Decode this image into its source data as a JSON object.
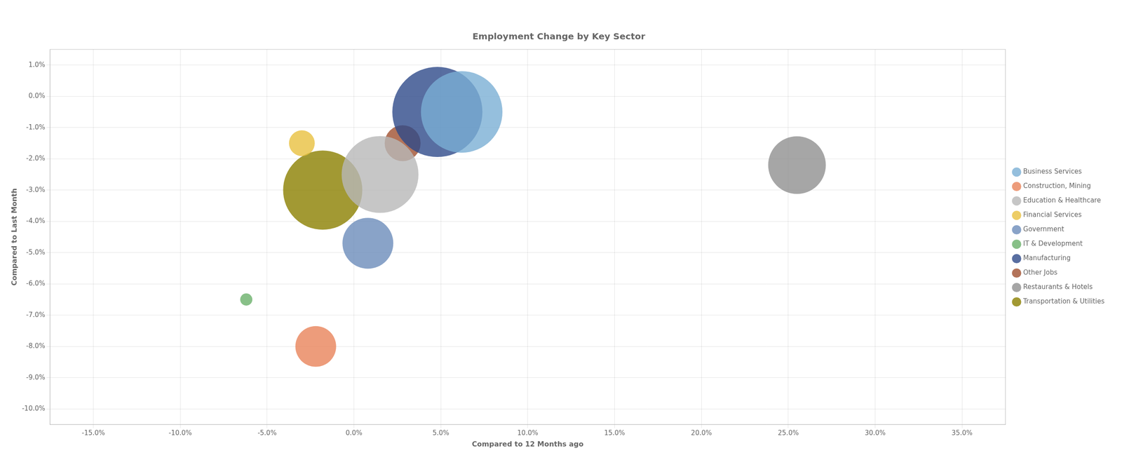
{
  "chart_data": {
    "type": "bubble",
    "title": "Employment Change by Key Sector",
    "x_label": "Compared to 12 Months ago",
    "y_label": "Compared to Last Month",
    "xlim": [
      -0.175,
      0.375
    ],
    "ylim": [
      -0.105,
      0.015
    ],
    "xticks": [
      {
        "value": -0.15,
        "label": "-15.0%"
      },
      {
        "value": -0.1,
        "label": "-10.0%"
      },
      {
        "value": -0.05,
        "label": "-5.0%"
      },
      {
        "value": 0.0,
        "label": "0.0%"
      },
      {
        "value": 0.05,
        "label": "5.0%"
      },
      {
        "value": 0.1,
        "label": "10.0%"
      },
      {
        "value": 0.15,
        "label": "15.0%"
      },
      {
        "value": 0.2,
        "label": "20.0%"
      },
      {
        "value": 0.25,
        "label": "25.0%"
      },
      {
        "value": 0.3,
        "label": "30.0%"
      },
      {
        "value": 0.35,
        "label": "35.0%"
      }
    ],
    "yticks": [
      {
        "value": -0.1,
        "label": "-10.0%"
      },
      {
        "value": -0.09,
        "label": "-9.0%"
      },
      {
        "value": -0.08,
        "label": "-8.0%"
      },
      {
        "value": -0.07,
        "label": "-7.0%"
      },
      {
        "value": -0.06,
        "label": "-6.0%"
      },
      {
        "value": -0.05,
        "label": "-5.0%"
      },
      {
        "value": -0.04,
        "label": "-4.0%"
      },
      {
        "value": -0.03,
        "label": "-3.0%"
      },
      {
        "value": -0.02,
        "label": "-2.0%"
      },
      {
        "value": -0.01,
        "label": "-1.0%"
      },
      {
        "value": 0.0,
        "label": "0.0%"
      },
      {
        "value": 0.01,
        "label": "1.0%"
      }
    ],
    "grid": true,
    "legend": "right",
    "series": [
      {
        "name": "Business Services",
        "color": "#7bafd4",
        "x": [
          0.062
        ],
        "values": [
          -0.005
        ],
        "size": [
          18000
        ]
      },
      {
        "name": "Construction, Mining",
        "color": "#e8835a",
        "x": [
          -0.022
        ],
        "values": [
          -0.08
        ],
        "size": [
          4500
        ]
      },
      {
        "name": "Education & Healthcare",
        "color": "#b8b8b8",
        "x": [
          0.015
        ],
        "values": [
          -0.025
        ],
        "size": [
          16000
        ]
      },
      {
        "name": "Financial Services",
        "color": "#e8c040",
        "x": [
          -0.03
        ],
        "values": [
          -0.015
        ],
        "size": [
          1800
        ]
      },
      {
        "name": "Government",
        "color": "#6b8cba",
        "x": [
          0.008
        ],
        "values": [
          -0.047
        ],
        "size": [
          7000
        ]
      },
      {
        "name": "IT & Development",
        "color": "#6ab06a",
        "x": [
          -0.062
        ],
        "values": [
          -0.065
        ],
        "size": [
          400
        ]
      },
      {
        "name": "Manufacturing",
        "color": "#2e4a8a",
        "x": [
          0.048
        ],
        "values": [
          -0.005
        ],
        "size": [
          22000
        ]
      },
      {
        "name": "Other Jobs",
        "color": "#a05030",
        "x": [
          0.028
        ],
        "values": [
          -0.015
        ],
        "size": [
          3500
        ]
      },
      {
        "name": "Restaurants & Hotels",
        "color": "#909090",
        "x": [
          0.255
        ],
        "values": [
          -0.022
        ],
        "size": [
          9000
        ]
      },
      {
        "name": "Transportation & Utilities",
        "color": "#8b8000",
        "x": [
          -0.018
        ],
        "values": [
          -0.03
        ],
        "size": [
          17000
        ]
      }
    ]
  }
}
